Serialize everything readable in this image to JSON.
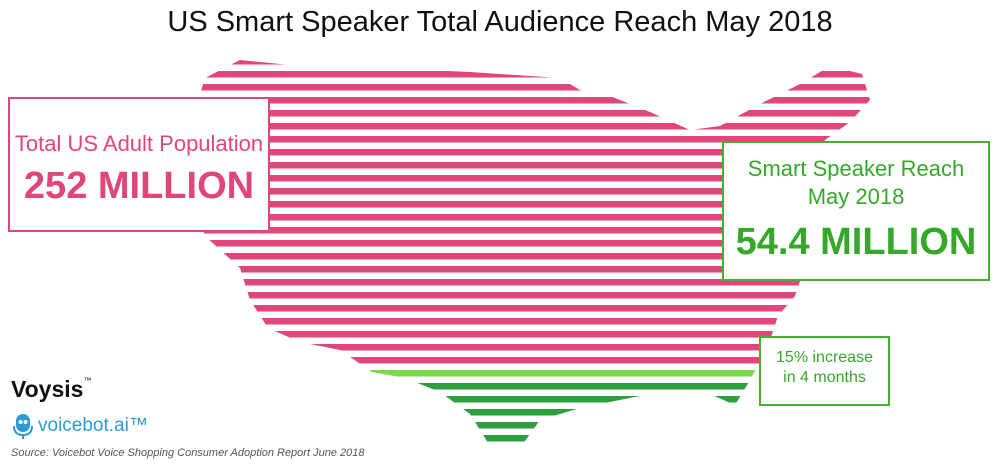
{
  "title": "US Smart Speaker Total Audience Reach May 2018",
  "colors": {
    "population": "#e0457b",
    "reach_light": "#7ad94a",
    "reach_dark": "#2e9f3e"
  },
  "chart_data": {
    "type": "pictograph",
    "title": "US Smart Speaker Total Audience Reach May 2018",
    "series": [
      {
        "name": "Total US Adult Population",
        "value": 252,
        "unit": "MILLION",
        "value_label": "252 MILLION"
      },
      {
        "name": "Smart Speaker Reach May 2018",
        "value": 54.4,
        "unit": "MILLION",
        "value_label": "54.4 MILLION"
      }
    ],
    "reach_share": 0.216,
    "annotations": [
      "15% increase in 4 months"
    ]
  },
  "callouts": {
    "population": {
      "label": "Total US Adult Population",
      "value": "252 MILLION"
    },
    "reach": {
      "label_line1": "Smart Speaker Reach",
      "label_line2": "May 2018",
      "value": "54.4 MILLION"
    },
    "increase": {
      "line1": "15% increase",
      "line2": "in 4 months"
    }
  },
  "branding": {
    "voysis": "Voysis",
    "voysis_mark": "™",
    "voicebot": "voicebot.ai",
    "voicebot_mark": "™",
    "voicebot_icon": "microphone-robot-icon",
    "source": "Source: Voicebot Voice Shopping Consumer Adoption Report June 2018"
  }
}
